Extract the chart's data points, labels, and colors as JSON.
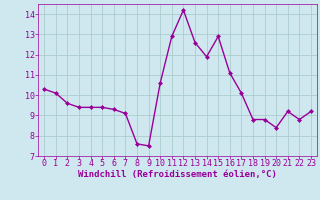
{
  "x": [
    0,
    1,
    2,
    3,
    4,
    5,
    6,
    7,
    8,
    9,
    10,
    11,
    12,
    13,
    14,
    15,
    16,
    17,
    18,
    19,
    20,
    21,
    22,
    23
  ],
  "y": [
    10.3,
    10.1,
    9.6,
    9.4,
    9.4,
    9.4,
    9.3,
    9.1,
    7.6,
    7.5,
    10.6,
    12.9,
    14.2,
    12.6,
    11.9,
    12.9,
    11.1,
    10.1,
    8.8,
    8.8,
    8.4,
    9.2,
    8.8,
    9.2
  ],
  "line_color": "#990099",
  "marker": "D",
  "marker_size": 2.0,
  "linewidth": 1.0,
  "bg_color": "#cfe8ef",
  "grid_color": "#aacccc",
  "xlabel": "Windchill (Refroidissement éolien,°C)",
  "xlabel_color": "#990099",
  "tick_color": "#990099",
  "xlim": [
    -0.5,
    23.5
  ],
  "ylim": [
    7,
    14.5
  ],
  "yticks": [
    7,
    8,
    9,
    10,
    11,
    12,
    13,
    14
  ],
  "xticks": [
    0,
    1,
    2,
    3,
    4,
    5,
    6,
    7,
    8,
    9,
    10,
    11,
    12,
    13,
    14,
    15,
    16,
    17,
    18,
    19,
    20,
    21,
    22,
    23
  ],
  "font_size_label": 6.5,
  "font_size_tick": 6.0
}
